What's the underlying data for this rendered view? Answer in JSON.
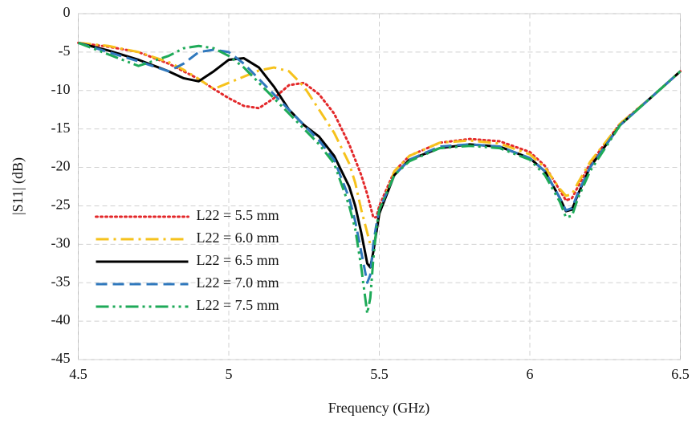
{
  "chart_data": {
    "type": "line",
    "x_label": "Frequency (GHz)",
    "y_label": "|S11| (dB)",
    "x": [
      4.5,
      4.6,
      4.7,
      4.8,
      4.85,
      4.9,
      4.95,
      5.0,
      5.05,
      5.1,
      5.15,
      5.2,
      5.25,
      5.3,
      5.35,
      5.4,
      5.42,
      5.44,
      5.46,
      5.47,
      5.48,
      5.49,
      5.5,
      5.55,
      5.6,
      5.7,
      5.8,
      5.9,
      6.0,
      6.05,
      6.1,
      6.12,
      6.14,
      6.16,
      6.2,
      6.3,
      6.4,
      6.5
    ],
    "xlim": [
      4.5,
      6.5
    ],
    "xticks": [
      4.5,
      5,
      5.5,
      6,
      6.5
    ],
    "ylim": [
      -45,
      0
    ],
    "yticks": [
      -45,
      -40,
      -35,
      -30,
      -25,
      -20,
      -15,
      -10,
      -5,
      0
    ],
    "grid": true,
    "legend": "lower-left",
    "series": [
      {
        "name": "L22 = 5.5 mm",
        "color": "#e3282a",
        "dash": "2 4",
        "values": [
          -3.8,
          -4.3,
          -5,
          -6.5,
          -7.5,
          -8.5,
          -9.8,
          -11,
          -12,
          -12.3,
          -11,
          -9.3,
          -9,
          -10.5,
          -13,
          -17,
          -19,
          -21,
          -23.5,
          -25,
          -26.5,
          -26.5,
          -25,
          -20.5,
          -18.5,
          -16.8,
          -16.3,
          -16.6,
          -18,
          -19.8,
          -23,
          -24.3,
          -24,
          -22.5,
          -19.5,
          -14.3,
          -11,
          -7.5
        ]
      },
      {
        "name": "L22 = 6.0 mm",
        "color": "#f6c21c",
        "dash": "16 6 3 6",
        "values": [
          -3.8,
          -4.2,
          -5,
          -6.3,
          -7.3,
          -8.5,
          -9.8,
          -9,
          -8.2,
          -7.4,
          -7,
          -7.5,
          -9.5,
          -12.5,
          -15.5,
          -19.5,
          -22,
          -25.5,
          -28.5,
          -30,
          -30.5,
          -28.5,
          -26,
          -20.5,
          -18.5,
          -16.8,
          -16.5,
          -16.9,
          -18.3,
          -20,
          -22.8,
          -23.7,
          -23.5,
          -22,
          -19.3,
          -14.3,
          -11,
          -7.5
        ]
      },
      {
        "name": "L22 = 6.5 mm",
        "color": "#000000",
        "dash": "",
        "values": [
          -3.8,
          -4.8,
          -6,
          -7.5,
          -8.4,
          -8.8,
          -7.5,
          -6,
          -5.8,
          -7,
          -9.5,
          -12.5,
          -14.5,
          -16,
          -18.5,
          -22.5,
          -25,
          -28.5,
          -32.5,
          -33,
          -31,
          -28.5,
          -26,
          -21,
          -19,
          -17.5,
          -17,
          -17.3,
          -18.8,
          -20.5,
          -24,
          -25.7,
          -25.5,
          -23.5,
          -20,
          -14.5,
          -11,
          -7.5
        ]
      },
      {
        "name": "L22 = 7.0 mm",
        "color": "#2f78bd",
        "dash": "14 7",
        "values": [
          -3.8,
          -5,
          -6.2,
          -7.5,
          -6.5,
          -5,
          -4.7,
          -5,
          -6.5,
          -8.5,
          -10.5,
          -12.5,
          -14.5,
          -16.5,
          -19,
          -24,
          -27,
          -31,
          -35,
          -34,
          -30,
          -27.5,
          -25.5,
          -21,
          -19,
          -17.3,
          -17,
          -17.3,
          -18.8,
          -20.5,
          -24,
          -25.6,
          -25.3,
          -23.3,
          -20,
          -14.5,
          -11,
          -7.5
        ]
      },
      {
        "name": "L22 = 7.5 mm",
        "color": "#1eaa58",
        "dash": "16 5 3 5 3 5",
        "values": [
          -3.8,
          -5.3,
          -6.8,
          -5.5,
          -4.5,
          -4.2,
          -4.5,
          -5.5,
          -7,
          -9,
          -11,
          -13,
          -15,
          -17,
          -19.5,
          -25,
          -28,
          -33,
          -39,
          -37,
          -32,
          -28,
          -25.5,
          -21,
          -19.2,
          -17.5,
          -17.2,
          -17.5,
          -19,
          -21,
          -24.5,
          -26.5,
          -26.3,
          -24,
          -20.5,
          -14.5,
          -11,
          -7.5
        ]
      }
    ]
  }
}
